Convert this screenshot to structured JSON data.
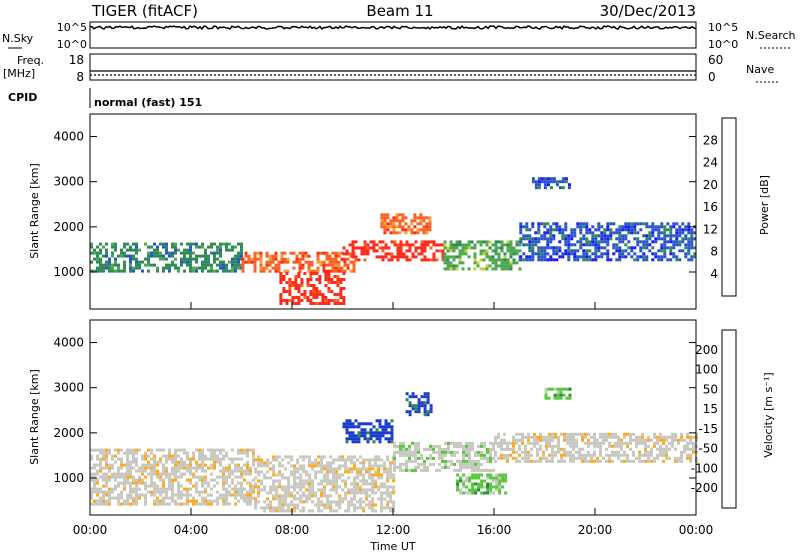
{
  "header": {
    "title": "TIGER (fitACF)",
    "beam": "Beam 11",
    "date": "30/Dec/2013"
  },
  "panels": {
    "nsky": {
      "label": "N.Sky",
      "ticks": [
        "10^5",
        "10^0"
      ],
      "right_ticks": [
        "10^5",
        "10^0"
      ],
      "right_label": "N.Search"
    },
    "freq": {
      "label_top": "Freq.",
      "label_bottom": "[MHz]",
      "ticks": [
        "18",
        "8"
      ],
      "right_ticks": [
        "60",
        "0"
      ],
      "right_label": "Nave"
    },
    "cpid": {
      "label": "CPID",
      "text": "normal (fast) 151"
    }
  },
  "colors": {
    "power": [
      "#1a1aff",
      "#2a55c8",
      "#2e8b57",
      "#4ea84e",
      "#c8d23c",
      "#f0a030",
      "#ff6020",
      "#ff2a1a"
    ],
    "velocity": [
      "#ff1a1a",
      "#ff6a1a",
      "#ffaa1a",
      "#c8c8c0",
      "#c8c8c0",
      "#5ac83c",
      "#2a8c3c",
      "#1a3ccc"
    ]
  },
  "chart_data": [
    {
      "type": "heatmap",
      "name": "power",
      "ylabel": "Slant Range [km]",
      "ylim": [
        180,
        4500
      ],
      "yticks": [
        1000,
        2000,
        3000,
        4000
      ],
      "colorbar_label": "Power [dB]",
      "colorbar_ticks": [
        "28",
        "24",
        "20",
        "16",
        "12",
        "8",
        "4"
      ],
      "bands": [
        {
          "t0": 0.0,
          "t1": 6.0,
          "r0": 1050,
          "r1": 1650,
          "level": 2
        },
        {
          "t0": 6.0,
          "t1": 10.5,
          "r0": 1000,
          "r1": 1450,
          "level": 6
        },
        {
          "t0": 7.5,
          "t1": 10.0,
          "r0": 300,
          "r1": 1000,
          "level": 7
        },
        {
          "t0": 10.0,
          "t1": 14.0,
          "r0": 1250,
          "r1": 1700,
          "level": 7
        },
        {
          "t0": 11.5,
          "t1": 13.5,
          "r0": 1900,
          "r1": 2300,
          "level": 6
        },
        {
          "t0": 14.0,
          "t1": 17.0,
          "r0": 1050,
          "r1": 1700,
          "level": 3
        },
        {
          "t0": 17.0,
          "t1": 24.0,
          "r0": 1300,
          "r1": 2100,
          "level": 1
        },
        {
          "t0": 17.5,
          "t1": 19.0,
          "r0": 2850,
          "r1": 3100,
          "level": 1
        }
      ]
    },
    {
      "type": "heatmap",
      "name": "velocity",
      "ylabel": "Slant Range [km]",
      "ylim": [
        180,
        4500
      ],
      "yticks": [
        1000,
        2000,
        3000,
        4000
      ],
      "colorbar_label": "Velocity [m s⁻¹]",
      "colorbar_ticks": [
        "200",
        "100",
        "50",
        "15",
        "-15",
        "-50",
        "-100",
        "-200"
      ],
      "bands": [
        {
          "t0": 0.0,
          "t1": 6.5,
          "r0": 450,
          "r1": 1650,
          "level": 3
        },
        {
          "t0": 6.5,
          "t1": 12.0,
          "r0": 300,
          "r1": 1500,
          "level": 3
        },
        {
          "t0": 10.0,
          "t1": 12.0,
          "r0": 1800,
          "r1": 2300,
          "level": 7
        },
        {
          "t0": 12.0,
          "t1": 16.0,
          "r0": 1200,
          "r1": 1800,
          "level": 4
        },
        {
          "t0": 14.5,
          "t1": 16.5,
          "r0": 700,
          "r1": 1100,
          "level": 5
        },
        {
          "t0": 16.0,
          "t1": 24.0,
          "r0": 1400,
          "r1": 2000,
          "level": 3
        },
        {
          "t0": 12.5,
          "t1": 13.5,
          "r0": 2400,
          "r1": 2900,
          "level": 7
        },
        {
          "t0": 18.0,
          "t1": 19.0,
          "r0": 2800,
          "r1": 3000,
          "level": 5
        }
      ]
    }
  ],
  "xaxis": {
    "label": "Time UT",
    "ticks": [
      "00:00",
      "04:00",
      "08:00",
      "12:00",
      "16:00",
      "20:00",
      "00:00"
    ],
    "range": [
      0,
      24
    ]
  }
}
